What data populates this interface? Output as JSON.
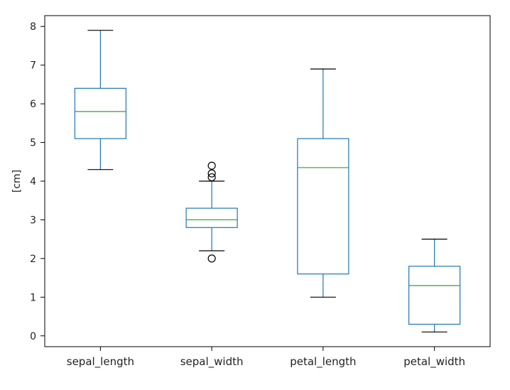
{
  "chart_data": {
    "type": "box",
    "title": "",
    "xlabel": "",
    "ylabel": "[cm]",
    "ylim": [
      -0.28,
      8.28
    ],
    "yticks": [
      0,
      1,
      2,
      3,
      4,
      5,
      6,
      7,
      8
    ],
    "grid": false,
    "categories": [
      "sepal_length",
      "sepal_width",
      "petal_length",
      "petal_width"
    ],
    "series": [
      {
        "q1": 5.1,
        "median": 5.8,
        "q3": 6.4,
        "whisker_low": 4.3,
        "whisker_high": 7.9,
        "outliers": []
      },
      {
        "q1": 2.8,
        "median": 3.0,
        "q3": 3.3,
        "whisker_low": 2.2,
        "whisker_high": 4.0,
        "outliers": [
          4.4,
          4.2,
          4.1,
          2.0
        ]
      },
      {
        "q1": 1.6,
        "median": 4.35,
        "q3": 5.1,
        "whisker_low": 1.0,
        "whisker_high": 6.9,
        "outliers": []
      },
      {
        "q1": 0.3,
        "median": 1.3,
        "q3": 1.8,
        "whisker_low": 0.1,
        "whisker_high": 2.5,
        "outliers": []
      }
    ],
    "colors": {
      "box": "#1f77b4",
      "median": "#2ca02c",
      "cap": "#000000",
      "outlier": "#000000",
      "axis": "#000000"
    }
  }
}
